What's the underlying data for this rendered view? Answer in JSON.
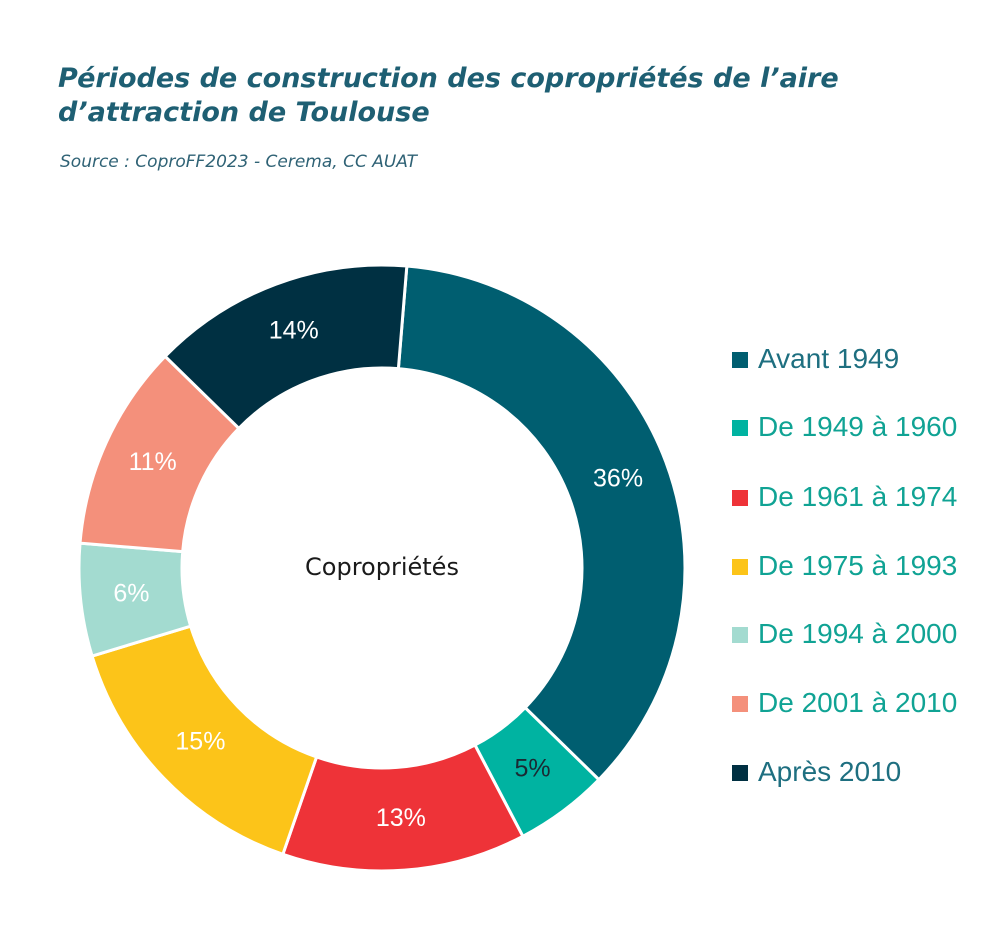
{
  "header": {
    "title": "Périodes de construction des copropriétés de l’aire d’attraction de Toulouse",
    "subtitle": "Source : CoproFF2023 - Cerema, CC AUAT"
  },
  "chart_data": {
    "type": "pie",
    "donut": true,
    "center_label": "Copropriétés",
    "legend_position": "right",
    "slices": [
      {
        "label": "Avant 1949",
        "value": 36,
        "display": "36%",
        "color": "#005e70",
        "text_color": "#ffffff",
        "legend_color": "#1e6f80"
      },
      {
        "label": "De 1949 à 1960",
        "value": 5,
        "display": "5%",
        "color": "#00b3a1",
        "text_color": "#1a2a33",
        "legend_color": "#10a394"
      },
      {
        "label": "De 1961 à 1974",
        "value": 13,
        "display": "13%",
        "color": "#ee3338",
        "text_color": "#ffffff",
        "legend_color": "#10a394"
      },
      {
        "label": "De 1975 à 1993",
        "value": 15,
        "display": "15%",
        "color": "#fcc419",
        "text_color": "#ffffff",
        "legend_color": "#10a394"
      },
      {
        "label": "De 1994 à 2000",
        "value": 6,
        "display": "6%",
        "color": "#a3dbd0",
        "text_color": "#ffffff",
        "legend_color": "#10a394"
      },
      {
        "label": "De 2001 à 2010",
        "value": 11,
        "display": "11%",
        "color": "#f4907b",
        "text_color": "#ffffff",
        "legend_color": "#10a394"
      },
      {
        "label": "Après 2010",
        "value": 14,
        "display": "14%",
        "color": "#003042",
        "text_color": "#ffffff",
        "legend_color": "#1e6f80"
      }
    ]
  }
}
